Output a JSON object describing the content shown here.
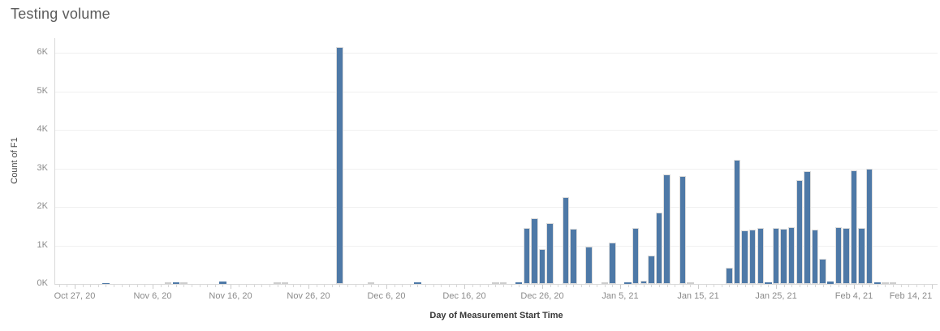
{
  "title": "Testing volume",
  "colors": {
    "bar": "#4e79a7",
    "muted_bar": "#cdcdcd",
    "gridline": "#f0f0f0",
    "axis_line": "#d9d9d9",
    "title_text": "#5b5b5b",
    "tick_text": "#8b8b8b",
    "axis_title_text": "#383838"
  },
  "chart_data": {
    "type": "bar",
    "title": "Testing volume",
    "xlabel": "Day of Measurement Start Time",
    "ylabel": "Count of F1",
    "ylim": [
      0,
      6500
    ],
    "grid": "horizontal",
    "legend": "none",
    "x_domain": [
      "2020-10-25",
      "2021-02-16"
    ],
    "y_ticks": [
      {
        "label": "0K",
        "value": 0
      },
      {
        "label": "1K",
        "value": 1000
      },
      {
        "label": "2K",
        "value": 2000
      },
      {
        "label": "3K",
        "value": 3000
      },
      {
        "label": "4K",
        "value": 4000
      },
      {
        "label": "5K",
        "value": 5000
      },
      {
        "label": "6K",
        "value": 6000
      }
    ],
    "x_ticks": [
      {
        "label": "Oct 27, 20",
        "date": "2020-10-27"
      },
      {
        "label": "Nov 6, 20",
        "date": "2020-11-06"
      },
      {
        "label": "Nov 16, 20",
        "date": "2020-11-16"
      },
      {
        "label": "Nov 26, 20",
        "date": "2020-11-26"
      },
      {
        "label": "Dec 6, 20",
        "date": "2020-12-06"
      },
      {
        "label": "Dec 16, 20",
        "date": "2020-12-16"
      },
      {
        "label": "Dec 26, 20",
        "date": "2020-12-26"
      },
      {
        "label": "Jan 5, 21",
        "date": "2021-01-05"
      },
      {
        "label": "Jan 15, 21",
        "date": "2021-01-15"
      },
      {
        "label": "Jan 25, 21",
        "date": "2021-01-25"
      },
      {
        "label": "Feb 4, 21",
        "date": "2021-02-04"
      },
      {
        "label": "Feb 14, 21",
        "date": "2021-02-14"
      }
    ],
    "bars": [
      {
        "date": "2020-10-31",
        "value": 30,
        "muted": false
      },
      {
        "date": "2020-11-08",
        "value": 12,
        "muted": true
      },
      {
        "date": "2020-11-09",
        "value": 40,
        "muted": false
      },
      {
        "date": "2020-11-10",
        "value": 12,
        "muted": true
      },
      {
        "date": "2020-11-15",
        "value": 60,
        "muted": false
      },
      {
        "date": "2020-11-22",
        "value": 12,
        "muted": true
      },
      {
        "date": "2020-11-23",
        "value": 12,
        "muted": true
      },
      {
        "date": "2020-11-30",
        "value": 6150,
        "muted": false
      },
      {
        "date": "2020-12-04",
        "value": 12,
        "muted": true
      },
      {
        "date": "2020-12-10",
        "value": 40,
        "muted": false
      },
      {
        "date": "2020-12-20",
        "value": 12,
        "muted": true
      },
      {
        "date": "2020-12-21",
        "value": 12,
        "muted": true
      },
      {
        "date": "2020-12-23",
        "value": 50,
        "muted": false
      },
      {
        "date": "2020-12-24",
        "value": 1450,
        "muted": false
      },
      {
        "date": "2020-12-25",
        "value": 1700,
        "muted": false
      },
      {
        "date": "2020-12-26",
        "value": 900,
        "muted": false
      },
      {
        "date": "2020-12-27",
        "value": 1570,
        "muted": false
      },
      {
        "date": "2020-12-29",
        "value": 2250,
        "muted": false
      },
      {
        "date": "2020-12-30",
        "value": 1430,
        "muted": false
      },
      {
        "date": "2021-01-01",
        "value": 960,
        "muted": false
      },
      {
        "date": "2021-01-03",
        "value": 12,
        "muted": true
      },
      {
        "date": "2021-01-04",
        "value": 1080,
        "muted": false
      },
      {
        "date": "2021-01-06",
        "value": 40,
        "muted": false
      },
      {
        "date": "2021-01-07",
        "value": 1450,
        "muted": false
      },
      {
        "date": "2021-01-08",
        "value": 90,
        "muted": false
      },
      {
        "date": "2021-01-09",
        "value": 730,
        "muted": false
      },
      {
        "date": "2021-01-10",
        "value": 1850,
        "muted": false
      },
      {
        "date": "2021-01-11",
        "value": 2840,
        "muted": false
      },
      {
        "date": "2021-01-13",
        "value": 2810,
        "muted": false
      },
      {
        "date": "2021-01-14",
        "value": 12,
        "muted": true
      },
      {
        "date": "2021-01-19",
        "value": 430,
        "muted": false
      },
      {
        "date": "2021-01-20",
        "value": 3220,
        "muted": false
      },
      {
        "date": "2021-01-21",
        "value": 1400,
        "muted": false
      },
      {
        "date": "2021-01-22",
        "value": 1420,
        "muted": false
      },
      {
        "date": "2021-01-23",
        "value": 1450,
        "muted": false
      },
      {
        "date": "2021-01-24",
        "value": 40,
        "muted": false
      },
      {
        "date": "2021-01-25",
        "value": 1460,
        "muted": false
      },
      {
        "date": "2021-01-26",
        "value": 1440,
        "muted": false
      },
      {
        "date": "2021-01-27",
        "value": 1480,
        "muted": false
      },
      {
        "date": "2021-01-28",
        "value": 2690,
        "muted": false
      },
      {
        "date": "2021-01-29",
        "value": 2920,
        "muted": false
      },
      {
        "date": "2021-01-30",
        "value": 1420,
        "muted": false
      },
      {
        "date": "2021-01-31",
        "value": 650,
        "muted": false
      },
      {
        "date": "2021-02-01",
        "value": 70,
        "muted": false
      },
      {
        "date": "2021-02-02",
        "value": 1480,
        "muted": false
      },
      {
        "date": "2021-02-03",
        "value": 1450,
        "muted": false
      },
      {
        "date": "2021-02-04",
        "value": 2950,
        "muted": false
      },
      {
        "date": "2021-02-05",
        "value": 1460,
        "muted": false
      },
      {
        "date": "2021-02-06",
        "value": 2990,
        "muted": false
      },
      {
        "date": "2021-02-07",
        "value": 50,
        "muted": false
      },
      {
        "date": "2021-02-08",
        "value": 12,
        "muted": true
      },
      {
        "date": "2021-02-09",
        "value": 12,
        "muted": true
      }
    ]
  }
}
